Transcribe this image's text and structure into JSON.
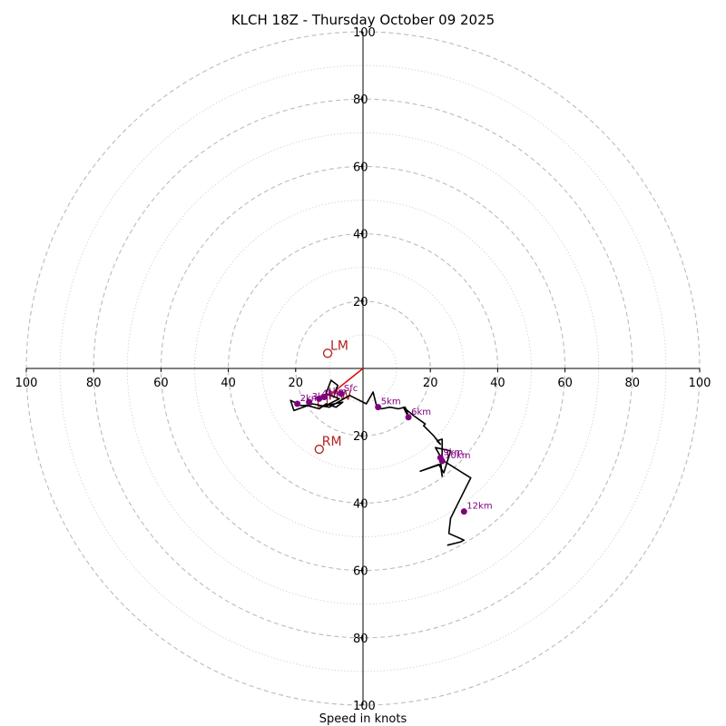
{
  "chart_data": {
    "type": "hodograph",
    "title": "KLCH 18Z - Thursday October 09 2025",
    "xlabel": "Speed in knots",
    "range": [
      -100,
      100
    ],
    "ring_step": 20,
    "minor_ring_step": 10,
    "tick_labels": {
      "top": [
        "100",
        "80",
        "60",
        "40",
        "20"
      ],
      "bottom": [
        "20",
        "40",
        "60",
        "80",
        "100"
      ],
      "left": [
        "100",
        "80",
        "60",
        "40",
        "20"
      ],
      "right": [
        "20",
        "40",
        "60",
        "80",
        "100"
      ]
    },
    "tick_values": [
      100,
      80,
      60,
      40,
      20
    ],
    "hodograph_line": {
      "color": "#000000",
      "u": [
        -8.5,
        -7.5,
        -9.5,
        -11,
        -7,
        -11,
        -6,
        -8,
        -11,
        -13,
        -16.5,
        -18.5,
        -21.5,
        -20.5,
        -15,
        -10,
        -4,
        0,
        1,
        3,
        4,
        5.5,
        8,
        10.5,
        12.5,
        13,
        13.5,
        12,
        15,
        18.5,
        18,
        19.5,
        21,
        23,
        22,
        23.5,
        23.5,
        21.5,
        26,
        24,
        22.5,
        17,
        23,
        23.5,
        23,
        24,
        32,
        29,
        26,
        25.5,
        30,
        29,
        25
      ],
      "v": [
        -7.5,
        -5,
        -3.5,
        -7.5,
        -9,
        -11,
        -10,
        -11.5,
        -10.5,
        -12,
        -11,
        -11,
        -9.5,
        -12.5,
        -10.5,
        -11.5,
        -8,
        -10,
        -10.5,
        -7,
        -11,
        -12,
        -11.5,
        -12,
        -11.5,
        -12.5,
        -14.5,
        -11.5,
        -14,
        -16.5,
        -17,
        -18.5,
        -20,
        -22.5,
        -21.5,
        -21,
        -27,
        -23.5,
        -24.5,
        -31,
        -28.5,
        -30.5,
        -28.5,
        -32,
        -27,
        -27.5,
        -32.5,
        -38.5,
        -44.5,
        -49,
        -51,
        -51.5,
        -52.5
      ]
    },
    "height_markers": {
      "color": "#800080",
      "points": [
        {
          "label": "Sfc",
          "u": -6.5,
          "v": -7.5
        },
        {
          "label": "1km",
          "u": -11.5,
          "v": -8.5
        },
        {
          "label": "2km",
          "u": -19.5,
          "v": -10.5
        },
        {
          "label": "3km",
          "u": -16,
          "v": -10
        },
        {
          "label": "4km",
          "u": -13,
          "v": -9
        },
        {
          "label": "5km",
          "u": 4.5,
          "v": -11.5
        },
        {
          "label": "6km",
          "u": 13.5,
          "v": -14.5
        },
        {
          "label": "9km",
          "u": 23,
          "v": -26.5
        },
        {
          "label": "10km",
          "u": 23.5,
          "v": -27.5
        },
        {
          "label": "12km",
          "u": 30,
          "v": -42.5
        }
      ]
    },
    "storm_motion": {
      "color": "#b22222",
      "vector_end": {
        "u": -10,
        "v": -8
      },
      "points": [
        {
          "label": "LM",
          "u": -10.5,
          "v": 4.5
        },
        {
          "label": "RM",
          "u": -13,
          "v": -24
        },
        {
          "label": "MW",
          "u": -12,
          "v": -9
        }
      ],
      "mean_wind_box": {
        "u": -12,
        "v": -10
      }
    }
  }
}
